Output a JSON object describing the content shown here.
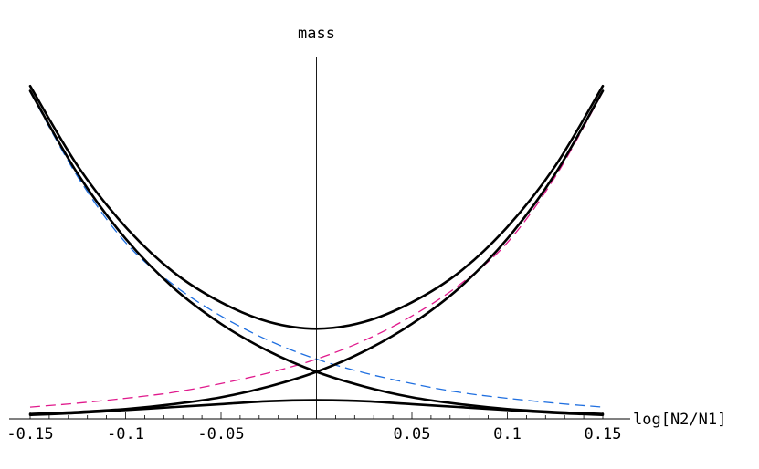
{
  "chart_data": {
    "type": "line",
    "title": "",
    "xlabel": "log[N2/N1]",
    "ylabel": "mass",
    "xlim": [
      -0.15,
      0.15
    ],
    "ylim": [
      0,
      3.7
    ],
    "grid": false,
    "legend": "none",
    "x_ticks": [
      {
        "value": -0.15,
        "label": "-0.15"
      },
      {
        "value": -0.1,
        "label": "-0.1"
      },
      {
        "value": -0.05,
        "label": "-0.05"
      },
      {
        "value": 0.05,
        "label": "0.05"
      },
      {
        "value": 0.1,
        "label": "0.1"
      },
      {
        "value": 0.15,
        "label": "0.15"
      }
    ],
    "series": [
      {
        "style": "solid",
        "color": "#000000",
        "x": [
          -0.15,
          -0.125,
          -0.1,
          -0.075,
          -0.05,
          -0.025,
          0,
          0.025,
          0.05,
          0.075,
          0.1,
          0.125,
          0.15
        ],
        "y": [
          3.35,
          2.5,
          1.84,
          1.34,
          0.97,
          0.69,
          0.48,
          0.33,
          0.22,
          0.15,
          0.1,
          0.07,
          0.05
        ]
      },
      {
        "style": "solid",
        "color": "#000000",
        "x": [
          -0.15,
          -0.125,
          -0.1,
          -0.075,
          -0.05,
          -0.025,
          0,
          0.025,
          0.05,
          0.075,
          0.1,
          0.125,
          0.15
        ],
        "y": [
          0.05,
          0.07,
          0.1,
          0.15,
          0.22,
          0.33,
          0.48,
          0.69,
          0.97,
          1.34,
          1.84,
          2.5,
          3.35
        ]
      },
      {
        "style": "solid",
        "color": "#000000",
        "x": [
          -0.15,
          -0.125,
          -0.1,
          -0.075,
          -0.05,
          -0.025,
          0,
          0.025,
          0.05,
          0.075,
          0.1,
          0.125,
          0.15
        ],
        "y": [
          3.4,
          2.58,
          1.96,
          1.5,
          1.19,
          0.99,
          0.92,
          0.99,
          1.19,
          1.5,
          1.96,
          2.58,
          3.4
        ]
      },
      {
        "style": "solid",
        "color": "#000000",
        "x": [
          -0.15,
          -0.125,
          -0.1,
          -0.075,
          -0.05,
          -0.025,
          0,
          0.025,
          0.05,
          0.075,
          0.1,
          0.125,
          0.15
        ],
        "y": [
          0.04,
          0.06,
          0.09,
          0.12,
          0.15,
          0.18,
          0.19,
          0.18,
          0.15,
          0.12,
          0.09,
          0.06,
          0.04
        ]
      },
      {
        "style": "dashed",
        "color": "#1f6fe0",
        "x": [
          -0.15,
          -0.125,
          -0.1,
          -0.075,
          -0.05,
          -0.025,
          0,
          0.025,
          0.05,
          0.075,
          0.1,
          0.125,
          0.15
        ],
        "y": [
          3.34,
          2.47,
          1.8,
          1.37,
          1.05,
          0.8,
          0.61,
          0.47,
          0.36,
          0.27,
          0.21,
          0.16,
          0.12
        ]
      },
      {
        "style": "dashed",
        "color": "#e0198c",
        "x": [
          -0.15,
          -0.125,
          -0.1,
          -0.075,
          -0.05,
          -0.025,
          0,
          0.025,
          0.05,
          0.075,
          0.1,
          0.125,
          0.15
        ],
        "y": [
          0.12,
          0.16,
          0.21,
          0.27,
          0.36,
          0.47,
          0.61,
          0.8,
          1.05,
          1.37,
          1.8,
          2.47,
          3.34
        ]
      }
    ]
  }
}
